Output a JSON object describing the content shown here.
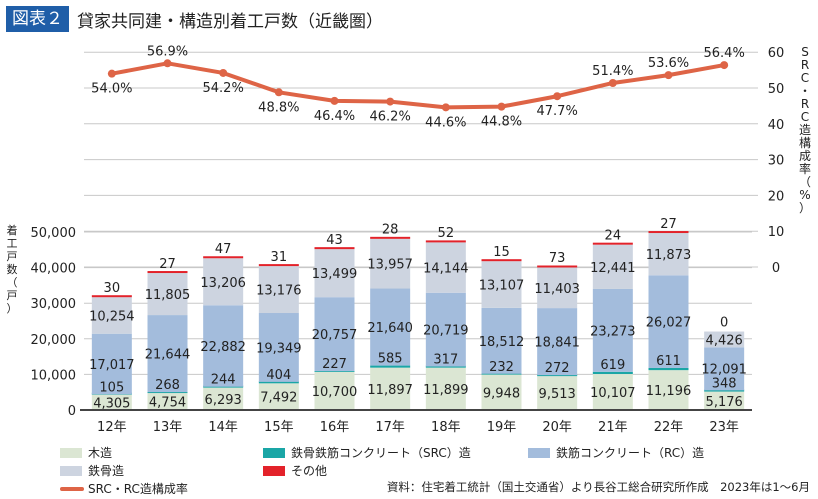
{
  "header": {
    "badge": "図表２",
    "title": "貸家共同建・構造別着工戸数（近畿圏）"
  },
  "colors": {
    "wood": "#dbe6d3",
    "src": "#1aa6a6",
    "rc": "#a3bcdc",
    "steel": "#cdd4e0",
    "other": "#e3222a",
    "line": "#de6446",
    "badge": "#1f5ea8"
  },
  "chart_data": {
    "type": "bar",
    "title": "貸家共同建・構造別着工戸数（近畿圏）",
    "categories": [
      "12年",
      "13年",
      "14年",
      "15年",
      "16年",
      "17年",
      "18年",
      "19年",
      "20年",
      "21年",
      "22年",
      "23年"
    ],
    "left_axis": {
      "label": "着工戸数（戸）",
      "range": [
        0,
        50000
      ],
      "ticks": [
        "0",
        "10,000",
        "20,000",
        "30,000",
        "40,000",
        "50,000"
      ]
    },
    "right_axis": {
      "label": "SRC・RC造構成率（%）",
      "range": [
        0,
        60
      ],
      "ticks": [
        "0",
        "10",
        "20",
        "30",
        "40",
        "50",
        "60"
      ]
    },
    "series": [
      {
        "name": "木造",
        "key": "wood",
        "values": [
          4305,
          4754,
          6293,
          7492,
          10700,
          11897,
          11899,
          9948,
          9513,
          10107,
          11196,
          5176
        ],
        "labels": [
          "4,305",
          "4,754",
          "6,293",
          "7,492",
          "10,700",
          "11,897",
          "11,899",
          "9,948",
          "9,513",
          "10,107",
          "11,196",
          "5,176"
        ]
      },
      {
        "name": "鉄骨鉄筋コンクリート（SRC）造",
        "key": "src",
        "values": [
          105,
          268,
          244,
          404,
          227,
          585,
          317,
          232,
          272,
          619,
          611,
          348
        ],
        "labels": [
          "105",
          "268",
          "244",
          "404",
          "227",
          "585",
          "317",
          "232",
          "272",
          "619",
          "611",
          "348"
        ]
      },
      {
        "name": "鉄筋コンクリート（RC）造",
        "key": "rc",
        "values": [
          17017,
          21644,
          22882,
          19349,
          20757,
          21640,
          20719,
          18512,
          18841,
          23273,
          26027,
          12091
        ],
        "labels": [
          "17,017",
          "21,644",
          "22,882",
          "19,349",
          "20,757",
          "21,640",
          "20,719",
          "18,512",
          "18,841",
          "23,273",
          "26,027",
          "12,091"
        ]
      },
      {
        "name": "鉄骨造",
        "key": "steel",
        "values": [
          10254,
          11805,
          13206,
          13176,
          13499,
          13957,
          14144,
          13107,
          11403,
          12441,
          11873,
          4426
        ],
        "labels": [
          "10,254",
          "11,805",
          "13,206",
          "13,176",
          "13,499",
          "13,957",
          "14,144",
          "13,107",
          "11,403",
          "12,441",
          "11,873",
          "4,426"
        ]
      },
      {
        "name": "その他",
        "key": "other",
        "values": [
          30,
          27,
          47,
          31,
          43,
          28,
          52,
          15,
          73,
          24,
          27,
          0
        ],
        "labels": [
          "30",
          "27",
          "47",
          "31",
          "43",
          "28",
          "52",
          "15",
          "73",
          "24",
          "27",
          "0"
        ]
      }
    ],
    "line_series": {
      "name": "SRC・RC造構成率",
      "values": [
        54.0,
        56.9,
        54.2,
        48.8,
        46.4,
        46.2,
        44.6,
        44.8,
        47.7,
        51.4,
        53.6,
        56.4
      ],
      "labels": [
        "54.0%",
        "56.9%",
        "54.2%",
        "48.8%",
        "46.4%",
        "46.2%",
        "44.6%",
        "44.8%",
        "47.7%",
        "51.4%",
        "53.6%",
        "56.4%"
      ]
    },
    "grid": true
  },
  "legend": {
    "wood": "木造",
    "src": "鉄骨鉄筋コンクリート（SRC）造",
    "rc": "鉄筋コンクリート（RC）造",
    "steel": "鉄骨造",
    "other": "その他",
    "line": "SRC・RC造構成率"
  },
  "source_note": "資料：住宅着工統計（国土交通省）より長谷工総合研究所作成　2023年は1～6月"
}
